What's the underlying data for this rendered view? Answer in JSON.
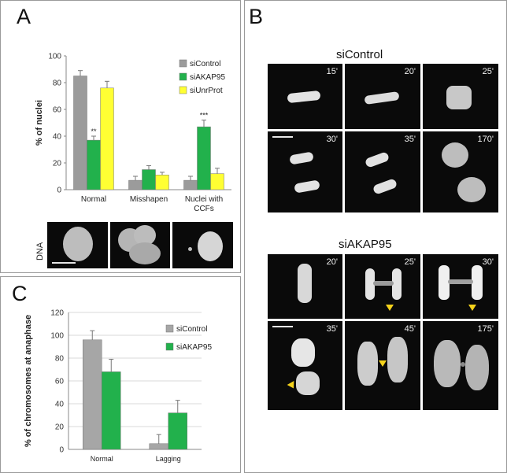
{
  "panels": {
    "a": "A",
    "b": "B",
    "c": "C"
  },
  "chart_data": [
    {
      "type": "bar",
      "panel": "A",
      "categories": [
        "Normal",
        "Misshapen",
        "Nuclei with CCFs"
      ],
      "category_lines": [
        [
          "Normal"
        ],
        [
          "Misshapen"
        ],
        [
          "Nuclei with",
          "CCFs"
        ]
      ],
      "ylabel": "% of nuclei",
      "ylim": [
        0,
        100
      ],
      "yticks": [
        0,
        20,
        40,
        60,
        80,
        100
      ],
      "grid": false,
      "legend_position": "top-right",
      "series": [
        {
          "name": "siControl",
          "color": "#9b9b9b",
          "values": [
            85,
            7,
            7
          ],
          "errors": [
            4,
            3,
            3
          ]
        },
        {
          "name": "siAKAP95",
          "color": "#22b14c",
          "values": [
            37,
            15,
            47
          ],
          "errors": [
            3,
            3,
            5
          ]
        },
        {
          "name": "siUnrProt",
          "color": "#ffff33",
          "values": [
            76,
            11,
            12
          ],
          "errors": [
            5,
            2,
            4
          ]
        }
      ],
      "annotations": [
        {
          "category": "Normal",
          "series": "siAKAP95",
          "text": "**"
        },
        {
          "category": "Nuclei with CCFs",
          "series": "siAKAP95",
          "text": "***"
        }
      ]
    },
    {
      "type": "bar",
      "panel": "C",
      "categories": [
        "Normal",
        "Lagging"
      ],
      "ylabel": "% of chromosomes at anaphase",
      "ylim": [
        0,
        120
      ],
      "yticks": [
        0,
        20,
        40,
        60,
        80,
        100,
        120
      ],
      "grid": true,
      "legend_position": "top-right",
      "series": [
        {
          "name": "siControl",
          "color": "#a6a6a6",
          "values": [
            96,
            5
          ],
          "errors": [
            8,
            8
          ]
        },
        {
          "name": "siAKAP95",
          "color": "#22b14c",
          "values": [
            68,
            32
          ],
          "errors": [
            11,
            11
          ]
        }
      ]
    }
  ],
  "panel_a_images": {
    "label": "DNA"
  },
  "panel_b": {
    "control_title": "siControl",
    "akap_title": "siAKAP95",
    "control_times": [
      "15'",
      "20'",
      "25'",
      "30'",
      "35'",
      "170'"
    ],
    "akap_times": [
      "20'",
      "25'",
      "30'",
      "35'",
      "45'",
      "175'"
    ]
  }
}
